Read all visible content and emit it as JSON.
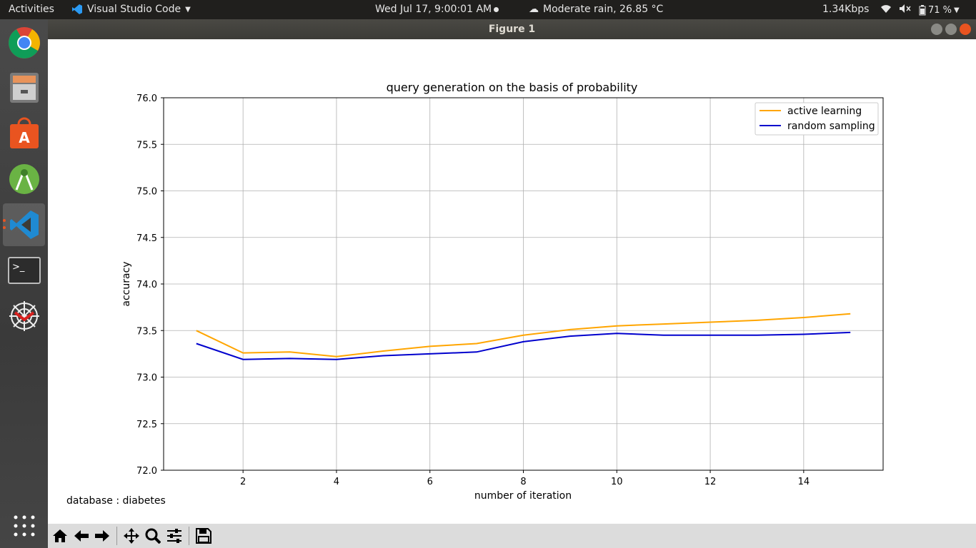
{
  "topbar": {
    "activities": "Activities",
    "app_name": "Visual Studio Code",
    "clock": "Wed Jul 17,  9:00:01 AM",
    "weather": "Moderate rain, 26.85 °C",
    "net_speed": "1.34Kbps",
    "battery": "71 %"
  },
  "dock": {
    "items": [
      "chrome-icon",
      "files-icon",
      "software-center-icon",
      "android-studio-icon",
      "vscode-icon",
      "terminal-icon",
      "network-icon"
    ],
    "apps_grid": "show-applications-icon"
  },
  "window": {
    "title": "Figure 1"
  },
  "figure": {
    "footer_text": "database : diabetes",
    "toolbar": [
      "home-icon",
      "back-icon",
      "forward-icon",
      "pan-icon",
      "zoom-icon",
      "configure-subplots-icon",
      "save-icon"
    ]
  },
  "chart_data": {
    "type": "line",
    "title": "query generation on the basis of probability",
    "xlabel": "number of iteration",
    "ylabel": "accuracy",
    "xlim": [
      0.3,
      15.7
    ],
    "ylim": [
      72.0,
      76.0
    ],
    "xticks": [
      "2",
      "4",
      "6",
      "8",
      "10",
      "12",
      "14"
    ],
    "yticks": [
      "72.0",
      "72.5",
      "73.0",
      "73.5",
      "74.0",
      "74.5",
      "75.0",
      "75.5",
      "76.0"
    ],
    "grid": true,
    "legend_position": "top-right",
    "x": [
      1,
      2,
      3,
      4,
      5,
      6,
      7,
      8,
      9,
      10,
      11,
      12,
      13,
      14,
      15
    ],
    "series": [
      {
        "name": "active learning",
        "color": "#ffa500",
        "values": [
          73.5,
          73.26,
          73.27,
          73.22,
          73.28,
          73.33,
          73.36,
          73.45,
          73.51,
          73.55,
          73.57,
          73.59,
          73.61,
          73.64,
          73.68
        ]
      },
      {
        "name": "random sampling",
        "color": "#0000cd",
        "values": [
          73.36,
          73.19,
          73.2,
          73.19,
          73.23,
          73.25,
          73.27,
          73.38,
          73.44,
          73.47,
          73.45,
          73.45,
          73.45,
          73.46,
          73.48
        ]
      }
    ]
  }
}
